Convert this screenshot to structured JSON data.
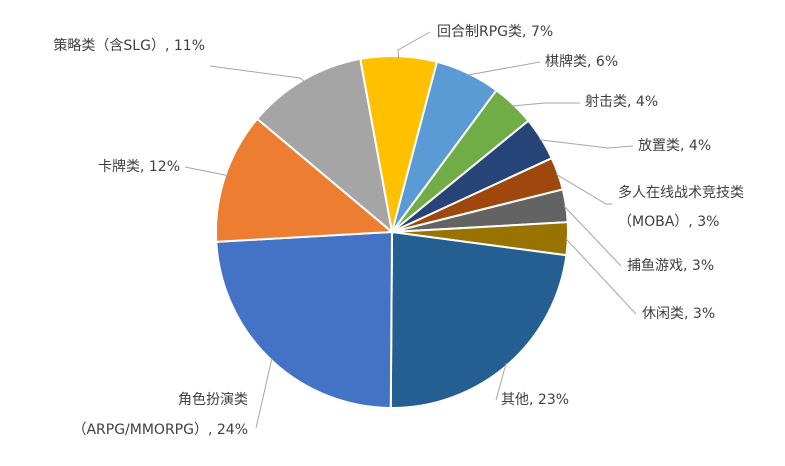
{
  "chart_data": {
    "type": "pie",
    "categories": [
      "回合制RPG类",
      "棋牌类",
      "射击类",
      "放置类",
      [
        "多人在线战术竞技类",
        "（MOBA）"
      ],
      "捕鱼游戏",
      "休闲类",
      "其他",
      [
        "角色扮演类",
        "（ARPG/MMORPG）"
      ],
      "卡牌类",
      "策略类（含SLG）"
    ],
    "values": [
      7,
      6,
      4,
      4,
      3,
      3,
      3,
      23,
      24,
      12,
      11
    ],
    "value_labels": [
      "7%",
      "6%",
      "4%",
      "4%",
      "3%",
      "3%",
      "3%",
      "23%",
      "24%",
      "12%",
      "11%"
    ],
    "label_separator": ", ",
    "colors": [
      "#ffc000",
      "#5b9bd5",
      "#70ad47",
      "#264478",
      "#9e480e",
      "#636363",
      "#997300",
      "#255e91",
      "#4472c4",
      "#ed7d31",
      "#a5a5a5"
    ]
  }
}
